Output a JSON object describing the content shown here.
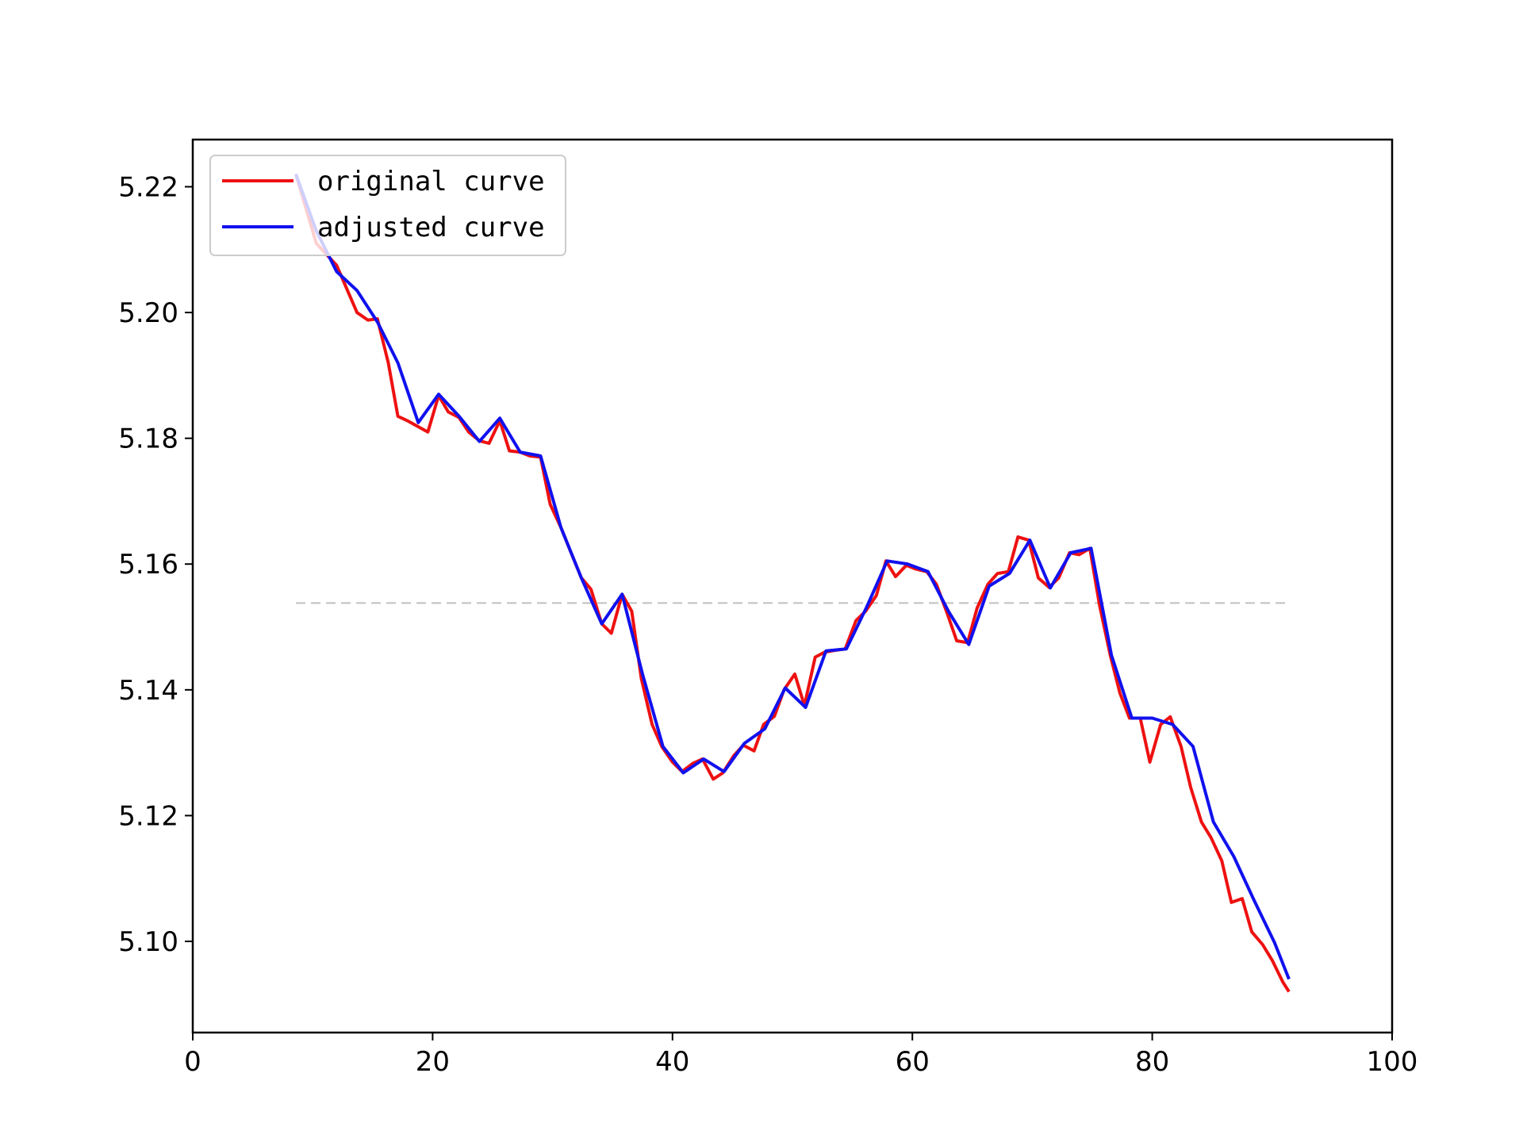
{
  "chart_data": {
    "type": "line",
    "xlim": [
      0,
      100
    ],
    "ylim": [
      5.0855,
      5.2275
    ],
    "xticks": [
      0,
      20,
      40,
      60,
      80,
      100
    ],
    "xtick_labels": [
      "0",
      "20",
      "40",
      "60",
      "80",
      "100"
    ],
    "yticks": [
      5.1,
      5.12,
      5.14,
      5.16,
      5.18,
      5.2,
      5.22
    ],
    "ytick_labels": [
      "5.10",
      "5.12",
      "5.14",
      "5.16",
      "5.18",
      "5.20",
      "5.22"
    ],
    "grid": false,
    "legend_position": "upper-left",
    "reference_line": {
      "y": 5.1538,
      "x_start": 8.6,
      "x_end": 91.4,
      "style": "dashed",
      "color": "#c0c0c0"
    },
    "series": [
      {
        "name": "original curve",
        "color": "#ee1111",
        "x": [
          8.6,
          10.3,
          12.0,
          13.7,
          14.6,
          15.4,
          16.3,
          17.1,
          17.9,
          19.6,
          20.5,
          21.3,
          22.2,
          23.0,
          23.9,
          24.7,
          25.6,
          26.4,
          27.3,
          28.1,
          29.0,
          29.8,
          30.7,
          31.5,
          32.4,
          33.2,
          34.1,
          34.9,
          35.8,
          36.6,
          37.4,
          38.3,
          39.1,
          40.0,
          40.8,
          41.7,
          42.5,
          43.4,
          44.2,
          45.1,
          45.9,
          46.8,
          47.6,
          48.5,
          49.3,
          50.2,
          51.0,
          51.9,
          52.7,
          53.6,
          54.4,
          55.3,
          56.1,
          57.0,
          57.8,
          58.6,
          59.5,
          60.3,
          61.2,
          62.0,
          62.9,
          63.7,
          64.6,
          65.4,
          66.3,
          67.1,
          68.0,
          68.8,
          69.7,
          70.5,
          71.4,
          72.2,
          73.1,
          73.9,
          74.8,
          75.6,
          76.5,
          77.3,
          78.1,
          79.0,
          79.8,
          80.7,
          81.5,
          82.4,
          83.2,
          84.1,
          84.9,
          85.8,
          86.6,
          87.5,
          88.3,
          89.2,
          90.0,
          90.9,
          91.4
        ],
        "values": [
          5.222,
          5.211,
          5.2075,
          5.2,
          5.1988,
          5.199,
          5.192,
          5.1835,
          5.1828,
          5.181,
          5.1868,
          5.1842,
          5.1833,
          5.181,
          5.1796,
          5.1792,
          5.1828,
          5.178,
          5.1778,
          5.1772,
          5.177,
          5.1695,
          5.1658,
          5.162,
          5.1578,
          5.156,
          5.1505,
          5.149,
          5.1552,
          5.1525,
          5.1418,
          5.1345,
          5.131,
          5.1285,
          5.127,
          5.1283,
          5.129,
          5.1258,
          5.1268,
          5.1295,
          5.1312,
          5.1303,
          5.1345,
          5.1358,
          5.14,
          5.1425,
          5.1375,
          5.1452,
          5.146,
          5.1463,
          5.1465,
          5.151,
          5.1525,
          5.155,
          5.1605,
          5.158,
          5.1598,
          5.1592,
          5.1588,
          5.1568,
          5.1522,
          5.1478,
          5.1475,
          5.153,
          5.1568,
          5.1585,
          5.1588,
          5.1643,
          5.1638,
          5.1578,
          5.1563,
          5.1578,
          5.1618,
          5.1615,
          5.1625,
          5.1535,
          5.1455,
          5.1395,
          5.1355,
          5.1355,
          5.1285,
          5.1345,
          5.1357,
          5.131,
          5.1245,
          5.119,
          5.1165,
          5.1128,
          5.1062,
          5.1068,
          5.1015,
          5.0995,
          5.097,
          5.0935,
          5.092
        ]
      },
      {
        "name": "adjusted curve",
        "color": "#1111ee",
        "x": [
          8.6,
          10.3,
          12.0,
          13.7,
          15.4,
          17.1,
          18.8,
          20.5,
          22.2,
          23.9,
          25.6,
          27.3,
          29.0,
          30.7,
          32.4,
          34.1,
          35.8,
          37.5,
          39.2,
          40.9,
          42.6,
          44.3,
          46.0,
          47.7,
          49.4,
          51.1,
          52.8,
          54.5,
          56.2,
          57.9,
          59.6,
          61.3,
          63.0,
          64.7,
          66.4,
          68.1,
          69.8,
          71.5,
          73.2,
          74.9,
          76.6,
          78.3,
          80.0,
          81.7,
          83.4,
          85.1,
          86.8,
          88.5,
          90.2,
          91.4
        ],
        "values": [
          5.222,
          5.213,
          5.2065,
          5.2035,
          5.1985,
          5.192,
          5.1825,
          5.187,
          5.1835,
          5.1795,
          5.1832,
          5.1778,
          5.1772,
          5.1658,
          5.1578,
          5.1505,
          5.1552,
          5.1425,
          5.131,
          5.1268,
          5.129,
          5.127,
          5.1315,
          5.1338,
          5.1403,
          5.1372,
          5.1462,
          5.1465,
          5.1532,
          5.1605,
          5.16,
          5.1588,
          5.1525,
          5.1472,
          5.1565,
          5.1585,
          5.1638,
          5.1562,
          5.1618,
          5.1625,
          5.1455,
          5.1355,
          5.1355,
          5.1345,
          5.131,
          5.119,
          5.1135,
          5.1065,
          5.0998,
          5.094
        ]
      }
    ]
  }
}
